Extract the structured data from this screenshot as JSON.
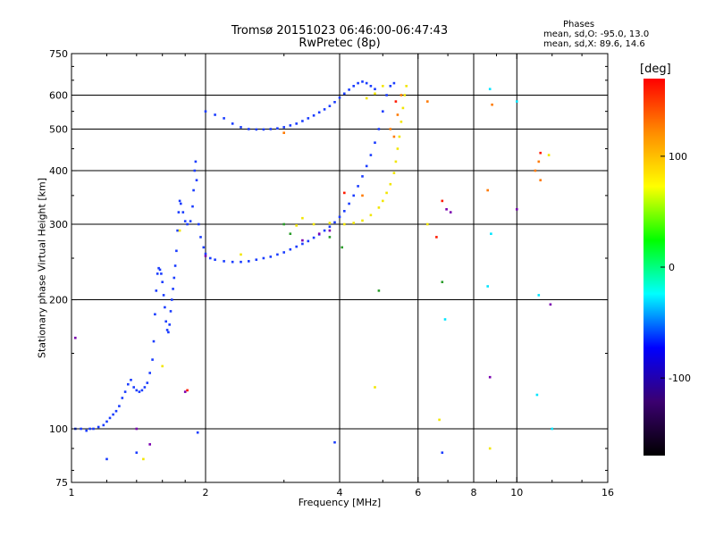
{
  "title": "Tromsø 20151023 06:46:00-06:47:43",
  "subtitle": "RwPretec (8p)",
  "phases": {
    "header": "Phases",
    "o_line": "mean, sd,O: -95.0, 13.0",
    "x_line": "mean, sd,X:  89.6, 14.6"
  },
  "colorbar": {
    "unit": "[deg]",
    "range": [
      -170,
      170
    ],
    "ticks": [
      {
        "value": 100,
        "label": "100"
      },
      {
        "value": 0,
        "label": "0"
      },
      {
        "value": -100,
        "label": "-100"
      }
    ],
    "stops": [
      "#000000",
      "#3b0070",
      "#0000ff",
      "#00ffff",
      "#00ff00",
      "#ffff00",
      "#ff8c00",
      "#ff0000"
    ]
  },
  "chart_data": {
    "type": "scatter",
    "xlabel": "Frequency [MHz]",
    "ylabel": "Stationary phase Virtual Height [km]",
    "x_scale": "log",
    "y_scale": "log",
    "xlim": [
      1,
      16
    ],
    "ylim": [
      75,
      750
    ],
    "grid": true,
    "xticks": [
      {
        "value": 1,
        "label": "1"
      },
      {
        "value": 2,
        "label": "2"
      },
      {
        "value": 4,
        "label": "4"
      },
      {
        "value": 6,
        "label": "6"
      },
      {
        "value": 8,
        "label": "8"
      },
      {
        "value": 10,
        "label": "10"
      },
      {
        "value": 16,
        "label": "16"
      }
    ],
    "xgrid": [
      2,
      4,
      6,
      8,
      10
    ],
    "yticks": [
      {
        "value": 75,
        "label": "75"
      },
      {
        "value": 100,
        "label": "100"
      },
      {
        "value": 200,
        "label": "200"
      },
      {
        "value": 300,
        "label": "300"
      },
      {
        "value": 400,
        "label": "400"
      },
      {
        "value": 500,
        "label": "500"
      },
      {
        "value": 600,
        "label": "600"
      },
      {
        "value": 750,
        "label": "750"
      }
    ],
    "ygrid": [
      100,
      200,
      300,
      400,
      500,
      600
    ],
    "series": [
      {
        "color": "#1a3cff",
        "points": [
          [
            1.02,
            100
          ],
          [
            1.05,
            100
          ],
          [
            1.08,
            99
          ],
          [
            1.1,
            100
          ],
          [
            1.12,
            100
          ],
          [
            1.15,
            101
          ],
          [
            1.18,
            102
          ],
          [
            1.2,
            104
          ],
          [
            1.22,
            106
          ],
          [
            1.24,
            108
          ],
          [
            1.26,
            110
          ],
          [
            1.28,
            113
          ],
          [
            1.3,
            118
          ],
          [
            1.32,
            122
          ],
          [
            1.34,
            127
          ],
          [
            1.36,
            130
          ],
          [
            1.38,
            125
          ],
          [
            1.4,
            123
          ],
          [
            1.42,
            122
          ],
          [
            1.44,
            123
          ],
          [
            1.46,
            125
          ],
          [
            1.48,
            128
          ],
          [
            1.5,
            135
          ],
          [
            1.52,
            145
          ],
          [
            1.53,
            160
          ],
          [
            1.54,
            185
          ],
          [
            1.55,
            210
          ],
          [
            1.56,
            230
          ],
          [
            1.57,
            237
          ],
          [
            1.58,
            235
          ],
          [
            1.59,
            230
          ],
          [
            1.6,
            220
          ],
          [
            1.61,
            205
          ],
          [
            1.62,
            192
          ],
          [
            1.63,
            178
          ],
          [
            1.64,
            170
          ],
          [
            1.65,
            168
          ],
          [
            1.66,
            175
          ],
          [
            1.67,
            188
          ],
          [
            1.68,
            200
          ],
          [
            1.69,
            212
          ],
          [
            1.7,
            225
          ],
          [
            1.71,
            240
          ],
          [
            1.72,
            260
          ],
          [
            1.73,
            290
          ],
          [
            1.74,
            320
          ],
          [
            1.75,
            340
          ],
          [
            1.76,
            335
          ],
          [
            1.78,
            320
          ],
          [
            1.8,
            305
          ],
          [
            1.82,
            300
          ],
          [
            1.85,
            305
          ],
          [
            1.87,
            330
          ],
          [
            1.88,
            360
          ],
          [
            1.89,
            400
          ],
          [
            1.9,
            420
          ],
          [
            1.91,
            380
          ],
          [
            1.93,
            300
          ],
          [
            1.95,
            280
          ],
          [
            1.98,
            265
          ],
          [
            2.0,
            256
          ],
          [
            2.05,
            250
          ],
          [
            2.1,
            248
          ],
          [
            2.2,
            246
          ],
          [
            2.3,
            245
          ],
          [
            2.4,
            245
          ],
          [
            2.5,
            246
          ],
          [
            2.6,
            248
          ],
          [
            2.7,
            250
          ],
          [
            2.8,
            252
          ],
          [
            2.9,
            255
          ],
          [
            3.0,
            258
          ],
          [
            3.1,
            262
          ],
          [
            3.2,
            266
          ],
          [
            3.3,
            270
          ],
          [
            3.4,
            274
          ],
          [
            3.5,
            279
          ],
          [
            3.6,
            284
          ],
          [
            3.7,
            290
          ],
          [
            3.8,
            296
          ],
          [
            3.9,
            303
          ],
          [
            4.0,
            312
          ],
          [
            4.1,
            322
          ],
          [
            4.2,
            335
          ],
          [
            4.3,
            350
          ],
          [
            4.4,
            368
          ],
          [
            4.5,
            388
          ],
          [
            4.6,
            410
          ],
          [
            4.7,
            435
          ],
          [
            4.8,
            465
          ],
          [
            4.9,
            500
          ],
          [
            5.0,
            550
          ],
          [
            5.1,
            600
          ],
          [
            5.2,
            630
          ],
          [
            5.3,
            640
          ],
          [
            2.0,
            550
          ],
          [
            2.1,
            540
          ],
          [
            2.2,
            530
          ],
          [
            2.3,
            515
          ],
          [
            2.4,
            505
          ],
          [
            2.5,
            500
          ],
          [
            2.6,
            499
          ],
          [
            2.7,
            499
          ],
          [
            2.8,
            500
          ],
          [
            2.9,
            502
          ],
          [
            3.0,
            505
          ],
          [
            3.1,
            510
          ],
          [
            3.2,
            515
          ],
          [
            3.3,
            522
          ],
          [
            3.4,
            530
          ],
          [
            3.5,
            538
          ],
          [
            3.6,
            547
          ],
          [
            3.7,
            556
          ],
          [
            3.8,
            566
          ],
          [
            3.9,
            578
          ],
          [
            4.0,
            592
          ],
          [
            4.1,
            605
          ],
          [
            4.2,
            618
          ],
          [
            4.3,
            630
          ],
          [
            4.4,
            640
          ],
          [
            4.5,
            645
          ],
          [
            4.6,
            640
          ],
          [
            4.7,
            630
          ],
          [
            4.8,
            620
          ],
          [
            1.2,
            85
          ],
          [
            1.4,
            88
          ],
          [
            3.9,
            93
          ],
          [
            6.8,
            88
          ],
          [
            1.92,
            98
          ]
        ]
      },
      {
        "color": "#f2e600",
        "points": [
          [
            3.2,
            298
          ],
          [
            3.5,
            300
          ],
          [
            3.8,
            302
          ],
          [
            4.1,
            300
          ],
          [
            4.3,
            302
          ],
          [
            4.5,
            306
          ],
          [
            4.7,
            315
          ],
          [
            4.9,
            328
          ],
          [
            5.0,
            340
          ],
          [
            5.1,
            355
          ],
          [
            5.2,
            372
          ],
          [
            5.3,
            395
          ],
          [
            5.35,
            420
          ],
          [
            5.4,
            450
          ],
          [
            5.45,
            480
          ],
          [
            5.5,
            520
          ],
          [
            5.55,
            560
          ],
          [
            5.6,
            600
          ],
          [
            5.65,
            630
          ],
          [
            4.6,
            590
          ],
          [
            4.8,
            605
          ],
          [
            5.0,
            630
          ],
          [
            1.75,
            290
          ],
          [
            1.6,
            140
          ],
          [
            2.4,
            255
          ],
          [
            3.3,
            310
          ],
          [
            6.3,
            300
          ],
          [
            6.7,
            105
          ],
          [
            4.8,
            125
          ],
          [
            8.7,
            90
          ],
          [
            1.45,
            85
          ],
          [
            11.8,
            435
          ]
        ]
      },
      {
        "color": "#ff7a00",
        "points": [
          [
            5.2,
            500
          ],
          [
            5.3,
            480
          ],
          [
            5.4,
            540
          ],
          [
            5.5,
            600
          ],
          [
            11.2,
            420
          ],
          [
            11.3,
            380
          ],
          [
            11.0,
            400
          ],
          [
            6.3,
            580
          ],
          [
            8.6,
            360
          ],
          [
            8.8,
            570
          ],
          [
            4.5,
            350
          ],
          [
            3.0,
            490
          ]
        ]
      },
      {
        "color": "#00e5ff",
        "points": [
          [
            8.7,
            620
          ],
          [
            8.75,
            285
          ],
          [
            10.0,
            580
          ],
          [
            11.1,
            120
          ],
          [
            11.2,
            205
          ],
          [
            12.0,
            100
          ],
          [
            8.6,
            215
          ],
          [
            6.9,
            180
          ]
        ]
      },
      {
        "color": "#2a9d2a",
        "points": [
          [
            4.9,
            210
          ],
          [
            3.8,
            280
          ],
          [
            4.05,
            265
          ],
          [
            3.0,
            300
          ],
          [
            3.1,
            285
          ],
          [
            6.8,
            220
          ]
        ]
      },
      {
        "color": "#7a00b0",
        "points": [
          [
            3.3,
            275
          ],
          [
            3.6,
            285
          ],
          [
            3.8,
            290
          ],
          [
            1.8,
            122
          ],
          [
            2.0,
            253
          ],
          [
            1.4,
            100
          ],
          [
            6.95,
            325
          ],
          [
            7.1,
            320
          ],
          [
            8.7,
            132
          ],
          [
            10.0,
            325
          ],
          [
            11.9,
            195
          ],
          [
            1.02,
            163
          ],
          [
            1.5,
            92
          ]
        ]
      },
      {
        "color": "#ff1a00",
        "points": [
          [
            1.82,
            123
          ],
          [
            4.1,
            355
          ],
          [
            5.35,
            580
          ],
          [
            11.3,
            440
          ],
          [
            6.8,
            340
          ],
          [
            6.6,
            280
          ]
        ]
      }
    ]
  }
}
